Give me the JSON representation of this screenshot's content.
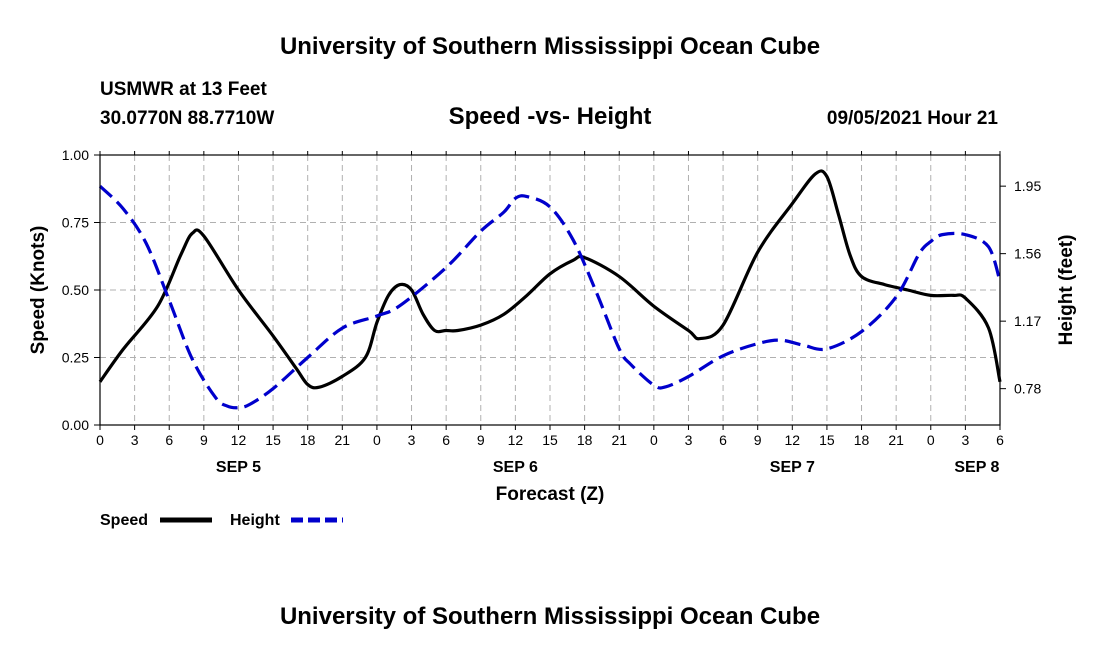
{
  "header": {
    "title": "University of Southern Mississippi Ocean Cube",
    "station": "USMWR at 13 Feet",
    "coords": "30.0770N  88.7710W",
    "subtitle": "Speed -vs- Height",
    "timestamp": "09/05/2021 Hour 21"
  },
  "footer": {
    "title": "University of Southern Mississippi Ocean Cube"
  },
  "legend": {
    "speed_label": "Speed",
    "height_label": "Height"
  },
  "colors": {
    "speed": "#000000",
    "height": "#0000cc",
    "grid": "#b0b0b0"
  },
  "chart_data": {
    "type": "line",
    "title": "Speed -vs- Height",
    "xlabel": "Forecast (Z)",
    "ylabel": "Speed (Knots)",
    "y2label": "Height (feet)",
    "x_hours_from_start": [
      0,
      3,
      6,
      9,
      12,
      15,
      18,
      21,
      24,
      27,
      30,
      33,
      36,
      39,
      42,
      45,
      48,
      51,
      54,
      57,
      60,
      63,
      66,
      69,
      72,
      75,
      78
    ],
    "x_tick_labels": [
      "0",
      "3",
      "6",
      "9",
      "12",
      "15",
      "18",
      "21",
      "0",
      "3",
      "6",
      "9",
      "12",
      "15",
      "18",
      "21",
      "0",
      "3",
      "6",
      "9",
      "12",
      "15",
      "18",
      "21",
      "0",
      "3",
      "6"
    ],
    "day_labels": [
      {
        "label": "SEP 5",
        "hour": 12
      },
      {
        "label": "SEP 6",
        "hour": 36
      },
      {
        "label": "SEP 7",
        "hour": 60
      },
      {
        "label": "SEP 8",
        "hour": 76
      }
    ],
    "xlim": [
      0,
      78
    ],
    "ylim": [
      0,
      1.0
    ],
    "y_ticks": [
      0.0,
      0.25,
      0.5,
      0.75,
      1.0
    ],
    "y_tick_labels": [
      "0.00",
      "0.25",
      "0.50",
      "0.75",
      "1.00"
    ],
    "y2lim": [
      0.57,
      2.13
    ],
    "y2_ticks": [
      0.78,
      1.17,
      1.56,
      1.95
    ],
    "y2_tick_labels": [
      "0.78",
      "1.17",
      "1.56",
      "1.95"
    ],
    "grid": true,
    "legend_position": "bottom-left",
    "series": [
      {
        "name": "Speed",
        "axis": "left",
        "style": "solid",
        "x": [
          0,
          2,
          5,
          7,
          8,
          9,
          12,
          15,
          17,
          18,
          19,
          21,
          23,
          24,
          25,
          26,
          27,
          28,
          29,
          30,
          31,
          33,
          35,
          37,
          39,
          41,
          42,
          45,
          48,
          51,
          52,
          54,
          57,
          60,
          62,
          63,
          64,
          65,
          66,
          68,
          70,
          72,
          74,
          75,
          77,
          78
        ],
        "y": [
          0.16,
          0.28,
          0.44,
          0.63,
          0.71,
          0.7,
          0.5,
          0.33,
          0.21,
          0.15,
          0.14,
          0.18,
          0.25,
          0.38,
          0.48,
          0.52,
          0.5,
          0.41,
          0.35,
          0.35,
          0.35,
          0.37,
          0.41,
          0.48,
          0.56,
          0.61,
          0.62,
          0.55,
          0.44,
          0.35,
          0.32,
          0.37,
          0.64,
          0.82,
          0.93,
          0.92,
          0.78,
          0.63,
          0.55,
          0.52,
          0.5,
          0.48,
          0.48,
          0.47,
          0.36,
          0.16
        ]
      },
      {
        "name": "Height",
        "axis": "right",
        "style": "dashed",
        "x": [
          0,
          2,
          4,
          6,
          8,
          10,
          11,
          12,
          13,
          15,
          18,
          21,
          24,
          26,
          30,
          33,
          35,
          36,
          37,
          39,
          41,
          43,
          45,
          46,
          48,
          49,
          51,
          54,
          57,
          59,
          61,
          63,
          66,
          69,
          71,
          72,
          73,
          75,
          77,
          78
        ],
        "y": [
          1.95,
          1.82,
          1.62,
          1.29,
          0.95,
          0.73,
          0.68,
          0.67,
          0.69,
          0.78,
          0.96,
          1.13,
          1.2,
          1.26,
          1.48,
          1.69,
          1.8,
          1.88,
          1.89,
          1.83,
          1.64,
          1.34,
          1.01,
          0.92,
          0.8,
          0.79,
          0.85,
          0.97,
          1.04,
          1.06,
          1.03,
          1.01,
          1.11,
          1.31,
          1.56,
          1.63,
          1.67,
          1.67,
          1.6,
          1.4
        ]
      }
    ]
  }
}
